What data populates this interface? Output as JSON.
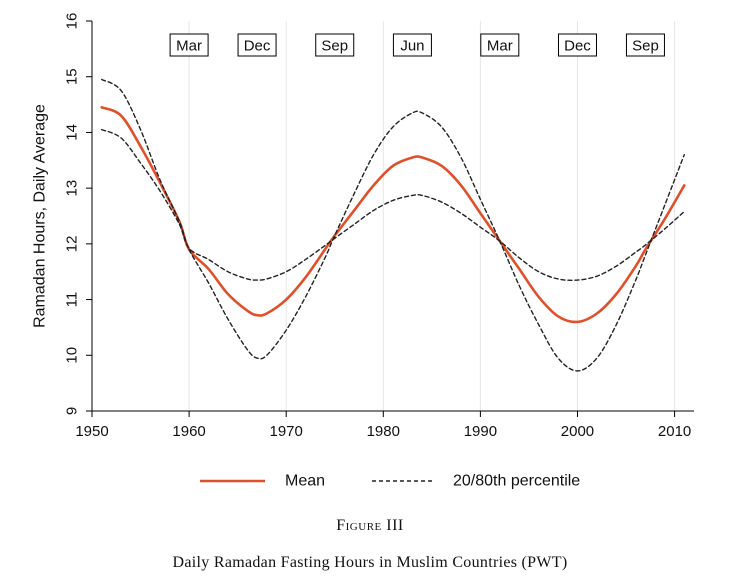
{
  "chart_data": {
    "type": "line",
    "ylabel": "Ramadan Hours, Daily Average",
    "xlabel": "",
    "xlim": [
      1950,
      2012
    ],
    "ylim": [
      9,
      16
    ],
    "x_ticks": [
      1950,
      1960,
      1970,
      1980,
      1990,
      2000,
      2010
    ],
    "y_ticks": [
      9,
      10,
      11,
      12,
      13,
      14,
      15,
      16
    ],
    "grid": "vertical",
    "legend_position": "bottom",
    "month_markers": [
      {
        "label": "Mar",
        "x": 1960
      },
      {
        "label": "Dec",
        "x": 1967
      },
      {
        "label": "Sep",
        "x": 1975
      },
      {
        "label": "Jun",
        "x": 1983
      },
      {
        "label": "Mar",
        "x": 1992
      },
      {
        "label": "Dec",
        "x": 2000
      },
      {
        "label": "Sep",
        "x": 2007
      }
    ],
    "series": [
      {
        "name": "Mean",
        "style": "solid",
        "color": "#e0502b",
        "points": [
          [
            1951,
            14.45
          ],
          [
            1953,
            14.3
          ],
          [
            1955,
            13.75
          ],
          [
            1957,
            13.1
          ],
          [
            1959,
            12.4
          ],
          [
            1960,
            11.9
          ],
          [
            1962,
            11.55
          ],
          [
            1964,
            11.1
          ],
          [
            1966,
            10.8
          ],
          [
            1967,
            10.72
          ],
          [
            1968,
            10.75
          ],
          [
            1970,
            11.0
          ],
          [
            1972,
            11.4
          ],
          [
            1974,
            11.9
          ],
          [
            1975,
            12.15
          ],
          [
            1977,
            12.6
          ],
          [
            1979,
            13.05
          ],
          [
            1981,
            13.4
          ],
          [
            1983,
            13.55
          ],
          [
            1984,
            13.55
          ],
          [
            1986,
            13.4
          ],
          [
            1988,
            13.05
          ],
          [
            1990,
            12.55
          ],
          [
            1992,
            12.05
          ],
          [
            1994,
            11.55
          ],
          [
            1996,
            11.05
          ],
          [
            1998,
            10.7
          ],
          [
            2000,
            10.6
          ],
          [
            2002,
            10.75
          ],
          [
            2004,
            11.1
          ],
          [
            2006,
            11.6
          ],
          [
            2007,
            11.9
          ],
          [
            2009,
            12.45
          ],
          [
            2011,
            13.05
          ]
        ]
      },
      {
        "name": "20/80th percentile",
        "style": "dashed",
        "color": "#222222",
        "points": [
          [
            1951,
            14.95
          ],
          [
            1953,
            14.75
          ],
          [
            1955,
            14.05
          ],
          [
            1957,
            13.15
          ],
          [
            1959,
            12.4
          ],
          [
            1960,
            11.9
          ],
          [
            1962,
            11.3
          ],
          [
            1964,
            10.65
          ],
          [
            1966,
            10.1
          ],
          [
            1967,
            9.95
          ],
          [
            1968,
            10.0
          ],
          [
            1970,
            10.45
          ],
          [
            1972,
            11.05
          ],
          [
            1974,
            11.75
          ],
          [
            1975,
            12.15
          ],
          [
            1977,
            12.9
          ],
          [
            1979,
            13.6
          ],
          [
            1981,
            14.1
          ],
          [
            1983,
            14.35
          ],
          [
            1984,
            14.35
          ],
          [
            1986,
            14.1
          ],
          [
            1988,
            13.55
          ],
          [
            1990,
            12.8
          ],
          [
            1992,
            12.05
          ],
          [
            1994,
            11.25
          ],
          [
            1996,
            10.55
          ],
          [
            1998,
            9.95
          ],
          [
            2000,
            9.72
          ],
          [
            2002,
            9.95
          ],
          [
            2004,
            10.55
          ],
          [
            2006,
            11.35
          ],
          [
            2007,
            11.8
          ],
          [
            2009,
            12.7
          ],
          [
            2011,
            13.6
          ]
        ]
      },
      {
        "name": "20/80th percentile",
        "style": "dashed",
        "color": "#222222",
        "points": [
          [
            1951,
            14.05
          ],
          [
            1953,
            13.9
          ],
          [
            1955,
            13.45
          ],
          [
            1957,
            12.95
          ],
          [
            1959,
            12.35
          ],
          [
            1960,
            11.92
          ],
          [
            1962,
            11.72
          ],
          [
            1964,
            11.5
          ],
          [
            1966,
            11.37
          ],
          [
            1967,
            11.35
          ],
          [
            1968,
            11.37
          ],
          [
            1970,
            11.5
          ],
          [
            1972,
            11.72
          ],
          [
            1974,
            11.97
          ],
          [
            1975,
            12.1
          ],
          [
            1977,
            12.35
          ],
          [
            1979,
            12.6
          ],
          [
            1981,
            12.78
          ],
          [
            1983,
            12.87
          ],
          [
            1984,
            12.87
          ],
          [
            1986,
            12.75
          ],
          [
            1988,
            12.55
          ],
          [
            1990,
            12.3
          ],
          [
            1992,
            12.05
          ],
          [
            1994,
            11.75
          ],
          [
            1996,
            11.5
          ],
          [
            1998,
            11.37
          ],
          [
            2000,
            11.35
          ],
          [
            2002,
            11.42
          ],
          [
            2004,
            11.6
          ],
          [
            2006,
            11.85
          ],
          [
            2007,
            11.98
          ],
          [
            2009,
            12.27
          ],
          [
            2011,
            12.58
          ]
        ]
      }
    ],
    "legend": [
      {
        "label": "Mean",
        "style": "solid"
      },
      {
        "label": "20/80th percentile",
        "style": "dashed"
      }
    ]
  },
  "caption": {
    "figure_label": "Figure III",
    "text": "Daily Ramadan Fasting Hours in Muslim Countries (PWT)"
  }
}
